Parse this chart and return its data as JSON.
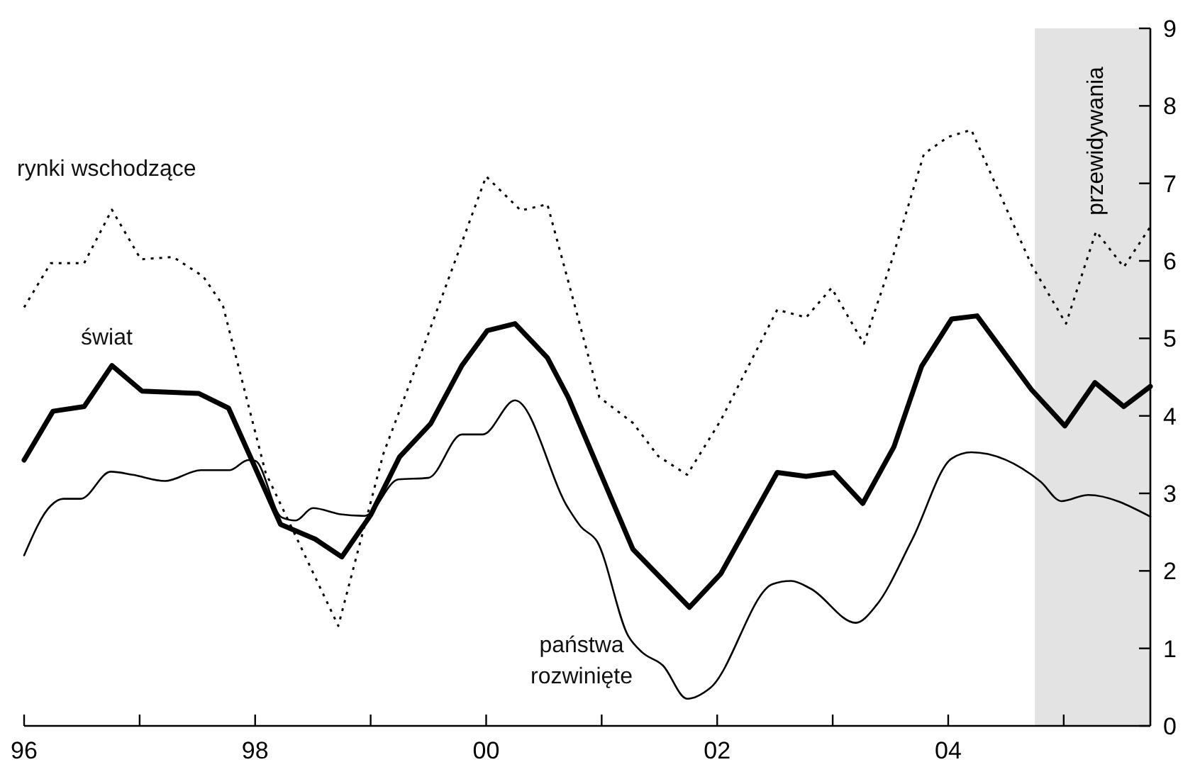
{
  "chart_data": {
    "type": "line",
    "xlim": [
      1996,
      2005.75
    ],
    "ylim": [
      0,
      9
    ],
    "xticks": [
      {
        "value": 1996,
        "label": "96"
      },
      {
        "value": 1997,
        "label": null
      },
      {
        "value": 1998,
        "label": "98"
      },
      {
        "value": 1999,
        "label": null
      },
      {
        "value": 2000,
        "label": "00"
      },
      {
        "value": 2001,
        "label": null
      },
      {
        "value": 2002,
        "label": "02"
      },
      {
        "value": 2003,
        "label": null
      },
      {
        "value": 2004,
        "label": "04"
      },
      {
        "value": 2005,
        "label": null
      }
    ],
    "yticks": [
      0,
      1,
      2,
      3,
      4,
      5,
      6,
      7,
      8,
      9
    ],
    "grid": false,
    "legend": false,
    "marker": "none",
    "bands": [
      {
        "axis": "x",
        "from": 2004.75,
        "to": 2005.75,
        "label": "przewidywania",
        "color": "#e3e3e3"
      }
    ],
    "series": [
      {
        "name": "rynki wschodzące",
        "color": "#000000",
        "line_style": "dotted",
        "x": [
          1996,
          1996.23,
          1996.52,
          1996.76,
          1997.01,
          1997.29,
          1997.55,
          1997.72,
          1998.09,
          1998.72,
          1999.11,
          1999.48,
          2000,
          2000.3,
          2000.53,
          2000.71,
          2000.98,
          2001.27,
          2001.49,
          2001.74,
          2002.03,
          2002.52,
          2002.77,
          2002.99,
          2003.27,
          2003.5,
          2003.79,
          2004,
          2004.2,
          2004.72,
          2005.02,
          2005.28,
          2005.52,
          2005.75
        ],
        "values": [
          5.4,
          5.97,
          5.97,
          6.66,
          6.02,
          6.05,
          5.8,
          5.43,
          3.27,
          1.29,
          3.51,
          4.98,
          7.09,
          6.65,
          6.73,
          5.74,
          4.24,
          3.91,
          3.48,
          3.24,
          3.94,
          5.37,
          5.27,
          5.65,
          4.93,
          5.95,
          7.38,
          7.6,
          7.69,
          5.95,
          5.19,
          6.38,
          5.92,
          6.44
        ]
      },
      {
        "name": "świat",
        "color": "#000000",
        "line_style": "solid",
        "x": [
          1996,
          1996.25,
          1996.52,
          1996.76,
          1997.02,
          1997.51,
          1997.77,
          1998.22,
          1998.52,
          1998.75,
          1999,
          1999.25,
          1999.52,
          1999.79,
          2000.01,
          2000.25,
          2000.53,
          2000.71,
          2001.27,
          2001.76,
          2002.03,
          2002.52,
          2002.77,
          2003.01,
          2003.26,
          2003.53,
          2003.77,
          2004.03,
          2004.25,
          2004.72,
          2005.01,
          2005.27,
          2005.52,
          2005.75
        ],
        "values": [
          3.43,
          4.06,
          4.12,
          4.65,
          4.32,
          4.29,
          4.1,
          2.6,
          2.41,
          2.18,
          2.72,
          3.47,
          3.9,
          4.65,
          5.1,
          5.19,
          4.75,
          4.24,
          2.28,
          1.53,
          1.96,
          3.27,
          3.22,
          3.27,
          2.87,
          3.6,
          4.64,
          5.25,
          5.29,
          4.34,
          3.87,
          4.43,
          4.12,
          4.38
        ]
      },
      {
        "name": "państwa rozwinięte",
        "color": "#000000",
        "line_style": "solid",
        "x": [
          1996,
          1996.23,
          1996.34,
          1996.49,
          1996.75,
          1996.94,
          1997.22,
          1997.53,
          1997.78,
          1997.94,
          1998,
          1998.23,
          1998.35,
          1998.5,
          1998.74,
          1998.95,
          1999.24,
          1999.5,
          1999.79,
          1999.97,
          2000.25,
          2000.71,
          2000.82,
          2000.96,
          2001.23,
          2001.35,
          2001.53,
          2001.74,
          2001.94,
          2002.48,
          2002.64,
          2002.81,
          2003.2,
          2003.38,
          2003.69,
          2004.03,
          2004.2,
          2004.8,
          2004.98,
          2005.21,
          2005.75
        ],
        "values": [
          2.2,
          2.84,
          2.93,
          2.93,
          3.28,
          3.24,
          3.16,
          3.3,
          3.3,
          3.43,
          3.42,
          2.69,
          2.65,
          2.81,
          2.73,
          2.71,
          3.18,
          3.2,
          3.76,
          3.76,
          4.2,
          2.81,
          2.57,
          2.38,
          1.16,
          0.95,
          0.78,
          0.35,
          0.49,
          1.83,
          1.87,
          1.77,
          1.33,
          1.56,
          2.41,
          3.45,
          3.53,
          3.15,
          2.9,
          2.98,
          2.7
        ]
      }
    ]
  }
}
